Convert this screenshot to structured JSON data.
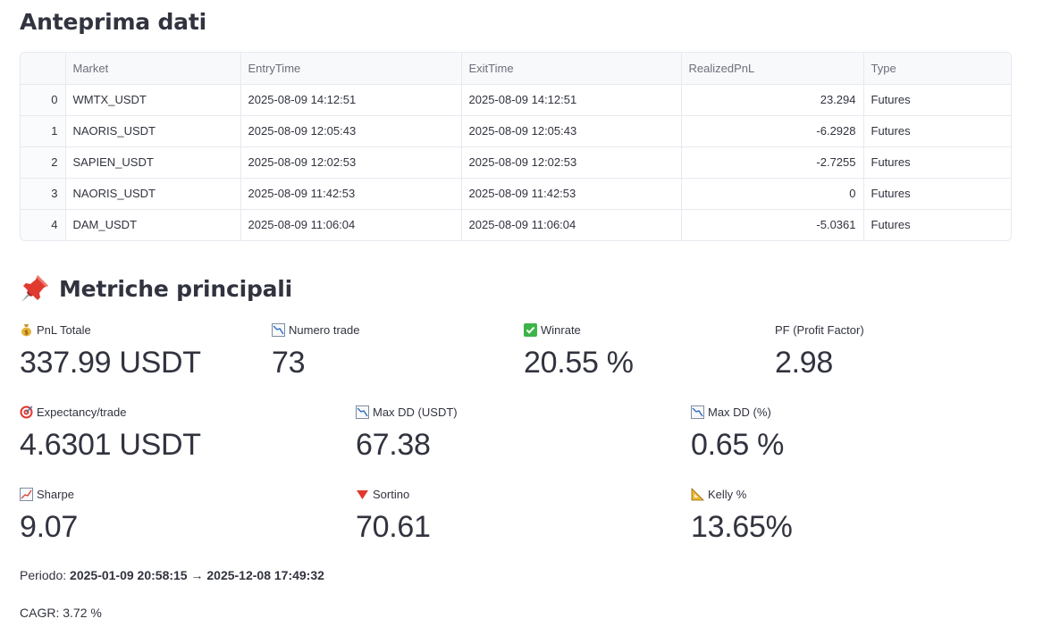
{
  "preview": {
    "title": "Anteprima dati",
    "columns": [
      "Market",
      "EntryTime",
      "ExitTime",
      "RealizedPnL",
      "Type"
    ],
    "rows": [
      {
        "index": "0",
        "market": "WMTX_USDT",
        "entry": "2025-08-09 14:12:51",
        "exit": "2025-08-09 14:12:51",
        "pnl": "23.294",
        "type": "Futures"
      },
      {
        "index": "1",
        "market": "NAORIS_USDT",
        "entry": "2025-08-09 12:05:43",
        "exit": "2025-08-09 12:05:43",
        "pnl": "-6.2928",
        "type": "Futures"
      },
      {
        "index": "2",
        "market": "SAPIEN_USDT",
        "entry": "2025-08-09 12:02:53",
        "exit": "2025-08-09 12:02:53",
        "pnl": "-2.7255",
        "type": "Futures"
      },
      {
        "index": "3",
        "market": "NAORIS_USDT",
        "entry": "2025-08-09 11:42:53",
        "exit": "2025-08-09 11:42:53",
        "pnl": "0",
        "type": "Futures"
      },
      {
        "index": "4",
        "market": "DAM_USDT",
        "entry": "2025-08-09 11:06:04",
        "exit": "2025-08-09 11:06:04",
        "pnl": "-5.0361",
        "type": "Futures"
      }
    ]
  },
  "metrics": {
    "title": "Metriche principali",
    "title_icon": "pushpin-icon",
    "items": [
      {
        "label": "PnL Totale",
        "value": "337.99 USDT",
        "icon": "money-bag-icon"
      },
      {
        "label": "Numero trade",
        "value": "73",
        "icon": "chart-decreasing-icon"
      },
      {
        "label": "Winrate",
        "value": "20.55 %",
        "icon": "check-mark-icon"
      },
      {
        "label": "PF (Profit Factor)",
        "value": "2.98",
        "icon": ""
      },
      {
        "label": "Expectancy/trade",
        "value": "4.6301 USDT",
        "icon": "target-icon"
      },
      {
        "label": "Max DD (USDT)",
        "value": "67.38",
        "icon": "chart-decreasing-icon"
      },
      {
        "label": "Max DD (%)",
        "value": "0.65 %",
        "icon": "chart-decreasing-icon"
      },
      {
        "label": "Sharpe",
        "value": "9.07",
        "icon": "chart-increasing-icon"
      },
      {
        "label": "Sortino",
        "value": "70.61",
        "icon": "red-triangle-down-icon"
      },
      {
        "label": "Kelly %",
        "value": "13.65%",
        "icon": "triangular-ruler-icon"
      }
    ]
  },
  "footer": {
    "period_label": "Periodo:",
    "period_value": "2025-01-09 20:58:15 → 2025-12-08 17:49:32",
    "cagr": "CAGR: 3.72 %"
  },
  "colors": {
    "text": "#31333f",
    "border": "#e6e9ef",
    "header_bg": "#f8f9fb"
  }
}
